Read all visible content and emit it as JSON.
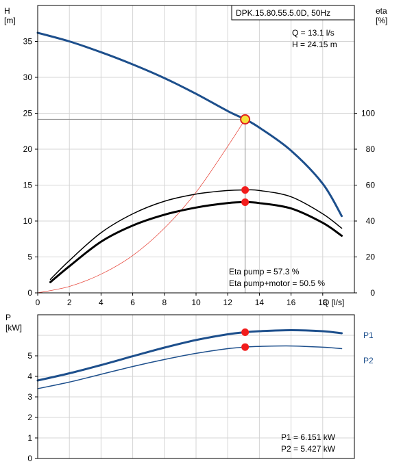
{
  "chart_data": [
    {
      "type": "line",
      "title": "DPK.15.80.55.5.0D, 50Hz",
      "xlabel": "Q [l/s]",
      "ylabel_left_1": "H",
      "ylabel_left_2": "[m]",
      "ylabel_right_1": "eta",
      "ylabel_right_2": "[%]",
      "xlim": [
        0,
        20
      ],
      "ylim": [
        0,
        40
      ],
      "y2lim": [
        0,
        160
      ],
      "x_ticks": [
        0,
        2,
        4,
        6,
        8,
        10,
        12,
        14,
        16,
        18
      ],
      "y_ticks": [
        0,
        5,
        10,
        15,
        20,
        25,
        30,
        35
      ],
      "y2_ticks": [
        0,
        20,
        40,
        60,
        80,
        100
      ],
      "grid": true,
      "operating_point": {
        "q_label": "Q = 13.1 l/s",
        "h_label": "H = 24.15 m",
        "q": 13.1,
        "h": 24.15
      },
      "series": [
        {
          "name": "",
          "axis": "left",
          "color": "#1d4f8c",
          "width": 3,
          "x": [
            0,
            2,
            4,
            6,
            8,
            10,
            12,
            13.1,
            14,
            16,
            18,
            19.2
          ],
          "y": [
            36.2,
            35.0,
            33.5,
            31.8,
            29.9,
            27.7,
            25.3,
            24.15,
            23.0,
            19.8,
            15.2,
            10.7
          ]
        },
        {
          "name": "",
          "axis": "left",
          "color": "#e84a3f",
          "width": 0.8,
          "x": [
            0,
            2,
            4,
            6,
            8,
            10,
            12,
            13.1
          ],
          "y": [
            0,
            0.9,
            2.6,
            5.2,
            9.0,
            14.0,
            20.4,
            24.15
          ]
        },
        {
          "name": "",
          "axis": "right",
          "color": "#000000",
          "width": 1.5,
          "x": [
            0.8,
            2,
            4,
            6,
            8,
            10,
            12,
            13.1,
            14,
            16,
            18,
            19.2
          ],
          "y": [
            7.5,
            18.0,
            33.5,
            44.0,
            51.0,
            55.0,
            57.0,
            57.3,
            57.0,
            53.5,
            44.0,
            36.0
          ]
        },
        {
          "name": "",
          "axis": "right",
          "color": "#000000",
          "width": 3,
          "x": [
            0.8,
            2,
            4,
            6,
            8,
            10,
            12,
            13.1,
            14,
            16,
            18,
            19.2
          ],
          "y": [
            6.0,
            14.8,
            28.5,
            37.5,
            43.5,
            47.5,
            50.0,
            50.5,
            50.0,
            47.0,
            39.0,
            31.8
          ]
        }
      ],
      "markers": [
        {
          "axis": "left",
          "x": 13.1,
          "y": 24.15,
          "style": "operating"
        },
        {
          "axis": "right",
          "x": 13.1,
          "y": 57.3,
          "style": "red"
        },
        {
          "axis": "right",
          "x": 13.1,
          "y": 50.5,
          "style": "red"
        }
      ],
      "annotations": [
        "Eta pump = 57.3 %",
        "Eta pump+motor = 50.5 %"
      ]
    },
    {
      "type": "line",
      "ylabel_left_1": "P",
      "ylabel_left_2": "[kW]",
      "xlim": [
        0,
        20
      ],
      "ylim": [
        0,
        7
      ],
      "y_ticks": [
        0,
        1,
        2,
        3,
        4,
        5
      ],
      "grid": true,
      "series": [
        {
          "name": "P1",
          "color": "#1d4f8c",
          "width": 3,
          "x": [
            0,
            2,
            4,
            6,
            8,
            10,
            12,
            13.1,
            14,
            16,
            18,
            19.2
          ],
          "y": [
            3.8,
            4.15,
            4.55,
            4.98,
            5.4,
            5.77,
            6.05,
            6.151,
            6.2,
            6.25,
            6.2,
            6.1
          ]
        },
        {
          "name": "P2",
          "color": "#1d4f8c",
          "width": 1.5,
          "x": [
            0,
            2,
            4,
            6,
            8,
            10,
            12,
            13.1,
            14,
            16,
            18,
            19.2
          ],
          "y": [
            3.4,
            3.72,
            4.1,
            4.48,
            4.82,
            5.12,
            5.35,
            5.427,
            5.46,
            5.48,
            5.42,
            5.35
          ]
        }
      ],
      "markers": [
        {
          "x": 13.1,
          "y": 6.151,
          "style": "red"
        },
        {
          "x": 13.1,
          "y": 5.427,
          "style": "red"
        }
      ],
      "annotations": [
        "P1 = 6.151 kW",
        "P2 = 5.427 kW"
      ]
    }
  ]
}
